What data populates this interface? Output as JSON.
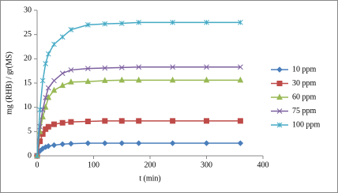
{
  "chart_data": {
    "type": "line",
    "xlabel": "t (min)",
    "ylabel": "mg (RHB) / gr(MS)",
    "x": [
      0,
      5,
      10,
      15,
      20,
      30,
      45,
      60,
      90,
      120,
      150,
      180,
      240,
      300,
      360
    ],
    "xlim": [
      0,
      400
    ],
    "xticks": [
      0,
      100,
      200,
      300,
      400
    ],
    "ylim": [
      0,
      30
    ],
    "yticks": [
      0,
      5,
      10,
      15,
      20,
      25,
      30
    ],
    "grid": false,
    "legend": "right",
    "series": [
      {
        "name": "10 ppm",
        "color": "#4a7ebb",
        "marker": "diamond",
        "values": [
          0,
          1,
          1.5,
          1.8,
          2,
          2.2,
          2.4,
          2.5,
          2.6,
          2.6,
          2.6,
          2.6,
          2.6,
          2.6,
          2.6
        ]
      },
      {
        "name": "30 ppm",
        "color": "#be4b48",
        "marker": "square",
        "values": [
          0,
          3,
          4.5,
          5.5,
          6,
          6.5,
          6.8,
          7,
          7.1,
          7.2,
          7.2,
          7.2,
          7.2,
          7.2,
          7.2
        ]
      },
      {
        "name": "60 ppm",
        "color": "#98b954",
        "marker": "triangle",
        "values": [
          0,
          5,
          8,
          10,
          12,
          13.5,
          14.5,
          15.2,
          15.3,
          15.5,
          15.6,
          15.6,
          15.6,
          15.6,
          15.6
        ]
      },
      {
        "name": "75 ppm",
        "color": "#7d60a0",
        "marker": "x",
        "values": [
          0,
          6,
          9.5,
          12,
          14,
          15.5,
          17,
          17.7,
          18,
          18.1,
          18.2,
          18.3,
          18.3,
          18.3,
          18.3
        ]
      },
      {
        "name": "100  ppm",
        "color": "#46aac5",
        "marker": "star",
        "values": [
          0,
          9.5,
          15.5,
          19,
          21,
          23,
          24.5,
          26,
          27,
          27.2,
          27.3,
          27.5,
          27.5,
          27.5,
          27.5
        ]
      }
    ]
  }
}
